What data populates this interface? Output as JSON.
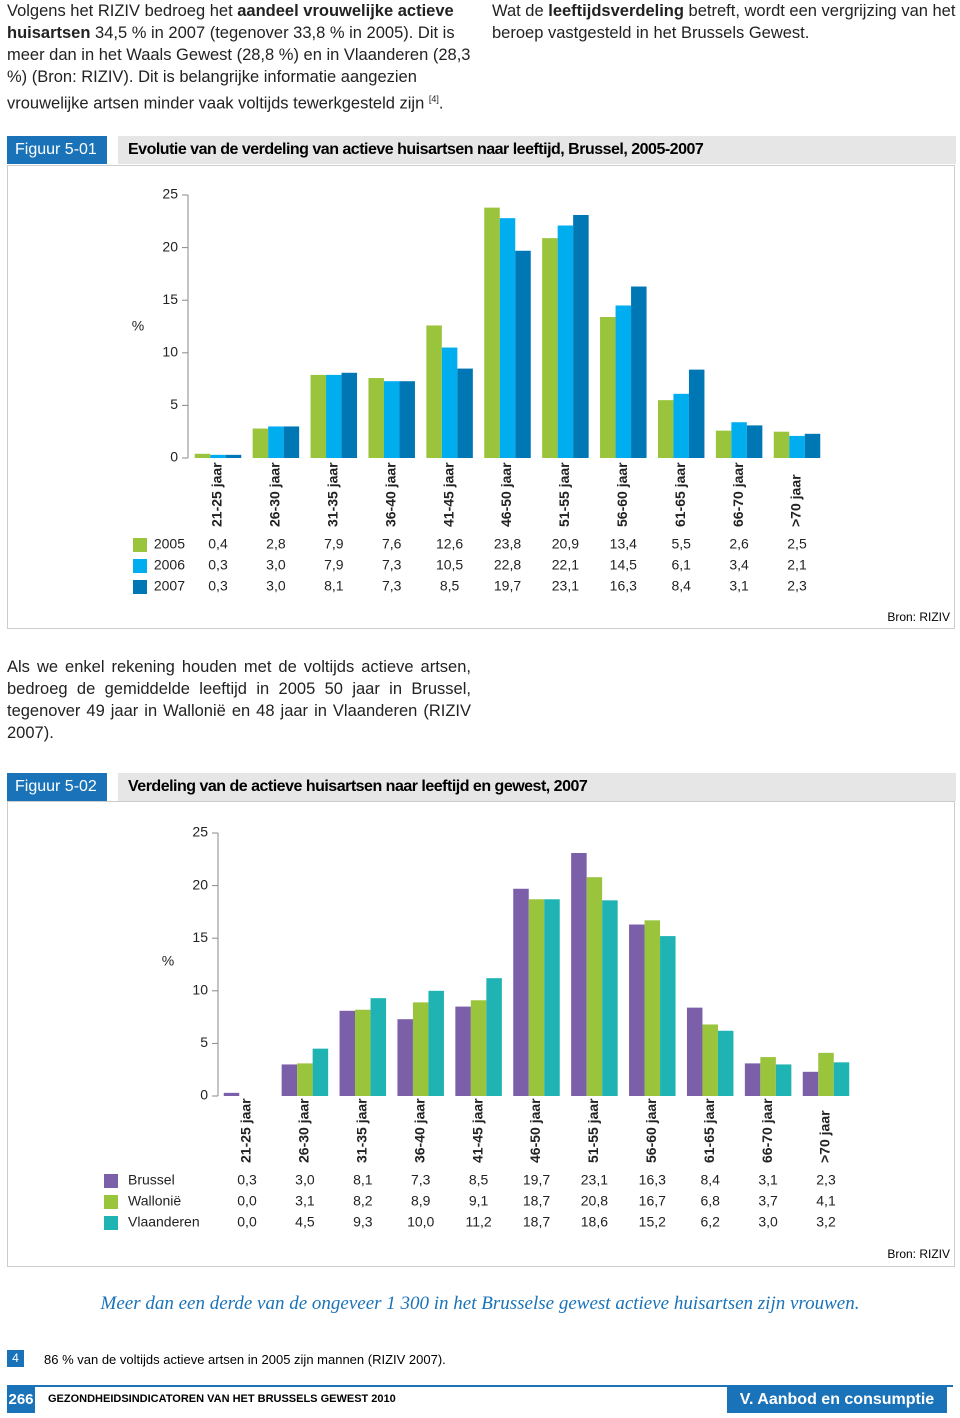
{
  "intro_left": [
    "Volgens het RIZIV bedroeg het ",
    "aandeel vrouwelijke actieve huisartsen",
    " 34,5 % in 2007 (tegenover 33,8 % in 2005). Dit is meer dan in het Waals Gewest (28,8 %) en in Vlaanderen (28,3 %) (Bron: RIZIV). Dit is belangrijke informatie aangezien vrouwelijke artsen minder vaak voltijds tewerkgesteld zijn ",
    "[4]",
    "."
  ],
  "intro_right": [
    "Wat de ",
    "leeftijdsverdeling",
    " betreft, wordt een vergrijzing van het beroep vastgesteld in het Brussels Gewest."
  ],
  "figures": [
    {
      "label": "Figuur 5-01",
      "source": "Bron: RIZIV"
    },
    {
      "label": "Figuur 5-02",
      "source": "Bron: RIZIV"
    }
  ],
  "middle_text": "Als we enkel rekening houden met de voltijds actieve artsen, bedroeg de gemiddelde leeftijd in 2005 50 jaar in Brussel, tegenover 49 jaar in Wallonië en 48 jaar in Vlaanderen (RIZIV 2007).",
  "chart_data": [
    {
      "type": "bar",
      "title": "Evolutie van de verdeling van actieve huisartsen naar leeftijd, Brussel, 2005-2007",
      "y_label": "%",
      "categories": [
        "21-25 jaar",
        "26-30 jaar",
        "31-35 jaar",
        "36-40 jaar",
        "41-45 jaar",
        "46-50 jaar",
        "51-55 jaar",
        "56-60 jaar",
        "61-65 jaar",
        "66-70 jaar",
        ">70 jaar"
      ],
      "series": [
        {
          "name": "2005",
          "color": "#9ac43c",
          "values": [
            0.4,
            2.8,
            7.9,
            7.6,
            12.6,
            23.8,
            20.9,
            13.4,
            5.5,
            2.6,
            2.5
          ],
          "value_labels": [
            "0,4",
            "2,8",
            "7,9",
            "7,6",
            "12,6",
            "23,8",
            "20,9",
            "13,4",
            "5,5",
            "2,6",
            "2,5"
          ]
        },
        {
          "name": "2006",
          "color": "#00aeef",
          "values": [
            0.3,
            3.0,
            7.9,
            7.3,
            10.5,
            22.8,
            22.1,
            14.5,
            6.1,
            3.4,
            2.1
          ],
          "value_labels": [
            "0,3",
            "3,0",
            "7,9",
            "7,3",
            "10,5",
            "22,8",
            "22,1",
            "14,5",
            "6,1",
            "3,4",
            "2,1"
          ]
        },
        {
          "name": "2007",
          "color": "#0077b5",
          "values": [
            0.3,
            3.0,
            8.1,
            7.3,
            8.5,
            19.7,
            23.1,
            16.3,
            8.4,
            3.1,
            2.3
          ],
          "value_labels": [
            "0,3",
            "3,0",
            "8,1",
            "7,3",
            "8,5",
            "19,7",
            "23,1",
            "16,3",
            "8,4",
            "3,1",
            "2,3"
          ]
        }
      ],
      "ylim": [
        0,
        25
      ],
      "yticks": [
        0,
        5,
        10,
        15,
        20,
        25
      ]
    },
    {
      "type": "bar",
      "title": "Verdeling van de actieve huisartsen naar leeftijd en gewest, 2007",
      "y_label": "%",
      "categories": [
        "21-25 jaar",
        "26-30 jaar",
        "31-35 jaar",
        "36-40 jaar",
        "41-45 jaar",
        "46-50 jaar",
        "51-55 jaar",
        "56-60 jaar",
        "61-65 jaar",
        "66-70 jaar",
        ">70 jaar"
      ],
      "series": [
        {
          "name": "Brussel",
          "color": "#7b5fa8",
          "values": [
            0.3,
            3.0,
            8.1,
            7.3,
            8.5,
            19.7,
            23.1,
            16.3,
            8.4,
            3.1,
            2.3
          ],
          "value_labels": [
            "0,3",
            "3,0",
            "8,1",
            "7,3",
            "8,5",
            "19,7",
            "23,1",
            "16,3",
            "8,4",
            "3,1",
            "2,3"
          ]
        },
        {
          "name": "Wallonië",
          "color": "#9ac43c",
          "values": [
            0.0,
            3.1,
            8.2,
            8.9,
            9.1,
            18.7,
            20.8,
            16.7,
            6.8,
            3.7,
            4.1
          ],
          "value_labels": [
            "0,0",
            "3,1",
            "8,2",
            "8,9",
            "9,1",
            "18,7",
            "20,8",
            "16,7",
            "6,8",
            "3,7",
            "4,1"
          ]
        },
        {
          "name": "Vlaanderen",
          "color": "#1fb3b3",
          "values": [
            0.0,
            4.5,
            9.3,
            10.0,
            11.2,
            18.7,
            18.6,
            15.2,
            6.2,
            3.0,
            3.2
          ],
          "value_labels": [
            "0,0",
            "4,5",
            "9,3",
            "10,0",
            "11,2",
            "18,7",
            "18,6",
            "15,2",
            "6,2",
            "3,0",
            "3,2"
          ]
        }
      ],
      "ylim": [
        0,
        25
      ],
      "yticks": [
        0,
        5,
        10,
        15,
        20,
        25
      ]
    }
  ],
  "quote": "Meer dan een derde van de ongeveer 1 300 in het Brusselse gewest actieve huisartsen zijn vrouwen.",
  "footnote": {
    "number": "4",
    "text": "86 % van de voltijds actieve artsen in 2005 zijn mannen (RIZIV 2007)."
  },
  "footer": {
    "page": "266",
    "publication": "GEZONDHEIDSINDICATOREN VAN HET BRUSSELS GEWEST 2010",
    "section": "V. Aanbod en consumptie van zorg"
  }
}
